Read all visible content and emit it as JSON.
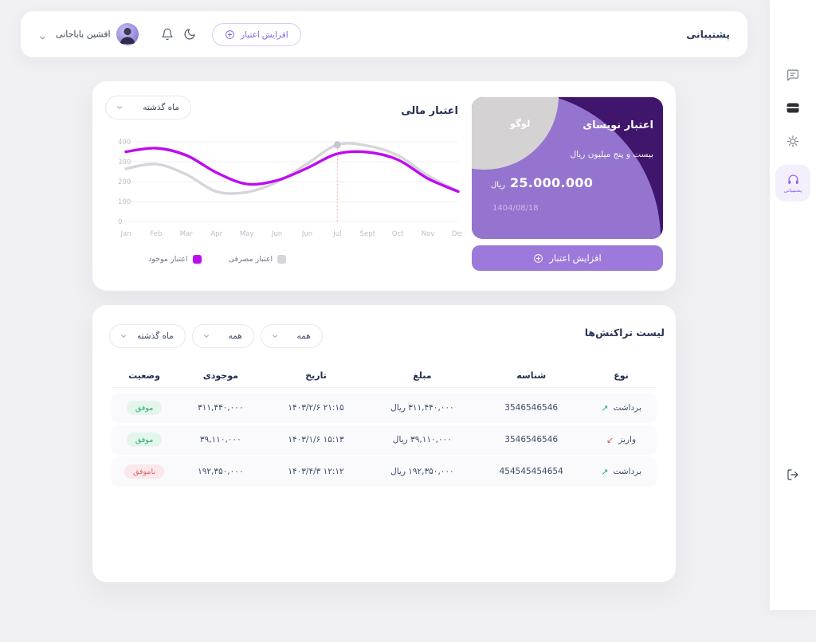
{
  "page": {
    "background": "#F0F0F3"
  },
  "header": {
    "support_title": "پشتیبانی",
    "increase_credit_label": "افزایش اعتبار",
    "user_name": "افشین باباجانی"
  },
  "sidebar": {
    "active_label": "پشتیبانی"
  },
  "finance_chart": {
    "title": "اعتبار مالی",
    "period_label": "ماه گذشته",
    "legend": [
      {
        "label": "اعتبار موجود",
        "color": "#BE0BF2"
      },
      {
        "label": "اعتبار مصرفی",
        "color": "#D6D5DB"
      }
    ]
  },
  "chart_data": {
    "type": "line",
    "title": "اعتبار مالی",
    "categories": [
      "Jan",
      "Feb",
      "Mar",
      "Apr",
      "May",
      "Jun",
      "Jun",
      "Jul",
      "Sept",
      "Oct",
      "Nov",
      "Des"
    ],
    "series": [
      {
        "name": "اعتبار موجود",
        "color": "#BE0BF2",
        "values": [
          350,
          368,
          332,
          245,
          188,
          206,
          268,
          340,
          348,
          310,
          215,
          150
        ]
      },
      {
        "name": "اعتبار مصرفی",
        "color": "#D6D5DB",
        "values": [
          265,
          288,
          236,
          150,
          147,
          198,
          290,
          385,
          380,
          332,
          230,
          152
        ]
      }
    ],
    "highlight": {
      "category_index": 7,
      "series": "اعتبار مصرفی",
      "value": 385,
      "line_color": "#E39C90",
      "marker_color": "#C7C6CE"
    },
    "y_ticks": [
      0,
      100,
      200,
      300,
      400
    ],
    "ylim": [
      0,
      400
    ],
    "grid": true,
    "legend_position": "bottom"
  },
  "credit_card": {
    "title": "اعتبار نویسای",
    "subtitle": "بیست و پنج میلیون ریال",
    "amount": "25.000.000",
    "currency": "ریال",
    "date": "1404/08/18",
    "logo_label": "لوگو",
    "button_label": "افزایش اعتبار",
    "colors": {
      "background": "#40156C",
      "circle": "#9474CE",
      "gray_circle": "#D4D2D2",
      "button": "#9C79DA"
    }
  },
  "transactions": {
    "title": "لیست تراکنش‌ها",
    "filters": [
      "همه",
      "همه",
      "ماه گذشته"
    ],
    "columns": [
      "نوع",
      "شناسه",
      "مبلغ",
      "تاریخ",
      "موجودی",
      "وضعیت"
    ],
    "rows": [
      {
        "type": "برداشت",
        "direction": "up",
        "id": "3546546546",
        "amount": "۳۱۱,۴۴۰,۰۰۰ ریال",
        "date": "۱۴۰۳/۲/۶ ۲۱:۱۵",
        "balance": "۳۱۱,۴۴۰,۰۰۰",
        "status": "موفق",
        "status_kind": "success"
      },
      {
        "type": "واریز",
        "direction": "down",
        "id": "3546546546",
        "amount": "۳۹,۱۱۰,۰۰۰ ریال",
        "date": "۱۴۰۳/۱/۶ ۱۵:۱۳",
        "balance": "۳۹,۱۱۰,۰۰۰",
        "status": "موفق",
        "status_kind": "success"
      },
      {
        "type": "برداشت",
        "direction": "up",
        "id": "454545454654",
        "amount": "۱۹۲,۳۵۰,۰۰۰ ریال",
        "date": "۱۴۰۳/۴/۳ ۱۲:۱۲",
        "balance": "۱۹۲,۳۵۰,۰۰۰",
        "status": "ناموفق",
        "status_kind": "fail"
      }
    ]
  },
  "colors": {
    "accent_purple": "#8B5CF6",
    "button_text_purple": "#8A63DE",
    "success_text": "#2FA96F",
    "success_bg": "#E4F6EC",
    "fail_text": "#E0606C",
    "fail_bg": "#FBE8EA"
  }
}
